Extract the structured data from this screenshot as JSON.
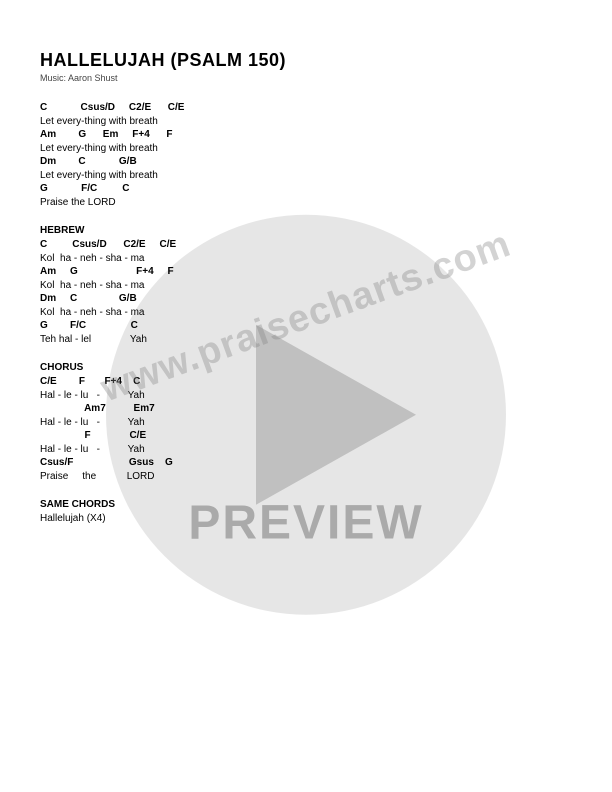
{
  "title": "HALLELUJAH (PSALM 150)",
  "credit": "Music: Aaron Shust",
  "sections": [
    {
      "label": "",
      "lines": [
        {
          "c": "C            Csus/D     C2/E      C/E"
        },
        {
          "l": "Let every-thing with breath"
        },
        {
          "c": "Am        G      Em     F+4      F"
        },
        {
          "l": "Let every-thing with breath"
        },
        {
          "c": "Dm        C            G/B"
        },
        {
          "l": "Let every-thing with breath"
        },
        {
          "c": "G            F/C         C"
        },
        {
          "l": "Praise the LORD"
        }
      ]
    },
    {
      "label": "HEBREW",
      "lines": [
        {
          "c": "C         Csus/D      C2/E     C/E"
        },
        {
          "l": "Kol  ha - neh - sha - ma"
        },
        {
          "c": "Am     G                     F+4     F"
        },
        {
          "l": "Kol  ha - neh - sha - ma"
        },
        {
          "c": "Dm     C               G/B"
        },
        {
          "l": "Kol  ha - neh - sha - ma"
        },
        {
          "c": "G        F/C                C"
        },
        {
          "l": "Teh hal - lel              Yah"
        }
      ]
    },
    {
      "label": "CHORUS",
      "lines": [
        {
          "c": "C/E        F       F+4    C"
        },
        {
          "l": "Hal - le - lu   -          Yah"
        },
        {
          "c": "                Am7          Em7"
        },
        {
          "l": "Hal - le - lu   -          Yah"
        },
        {
          "c": "                F              C/E"
        },
        {
          "l": "Hal - le - lu   -          Yah"
        },
        {
          "c": "Csus/F                    Gsus    G"
        },
        {
          "l": "Praise     the           LORD"
        }
      ]
    },
    {
      "label": "SAME CHORDS",
      "lines": [
        {
          "l": "Hallelujah (X4)"
        }
      ]
    }
  ],
  "watermark": {
    "url": "www.praisecharts.com",
    "preview": "PREVIEW",
    "circle_color": "rgba(140,140,140,0.22)",
    "circle_size": 420
  }
}
